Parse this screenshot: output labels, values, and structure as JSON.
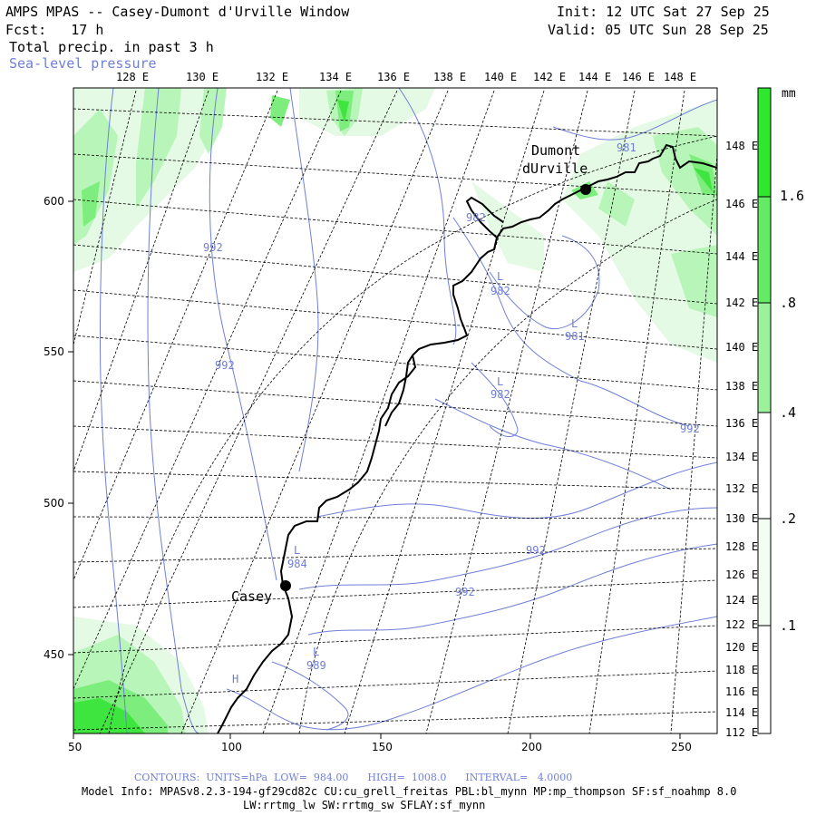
{
  "header": {
    "title": "AMPS MPAS -- Casey-Dumont d'Urville Window",
    "fcst": "Fcst:   17 h",
    "field1": "Total precip. in past 3 h",
    "field2": "Sea-level pressure",
    "init": "Init: 12 UTC Sat 27 Sep 25",
    "valid": "Valid: 05 UTC Sun 28 Sep 25"
  },
  "top_lon_labels": [
    "128 E",
    "130 E",
    "132 E",
    "134 E",
    "136 E",
    "138 E",
    "140 E",
    "142 E",
    "144 E",
    "146 E",
    "148 E"
  ],
  "right_lon_labels": [
    "148 E",
    "146 E",
    "144 E",
    "142 E",
    "140 E",
    "138 E",
    "136 E",
    "134 E",
    "132 E",
    "130 E",
    "128 E",
    "126 E",
    "124 E",
    "122 E",
    "120 E",
    "118 E",
    "116 E",
    "114 E",
    "112 E"
  ],
  "x_axis_labels": [
    "50",
    "100",
    "150",
    "200",
    "250"
  ],
  "y_axis_labels": [
    "600",
    "550",
    "500",
    "450"
  ],
  "colorbar": {
    "unit": "mm",
    "labels": [
      "1.6",
      ".8",
      ".4",
      ".2",
      ".1"
    ],
    "colors": [
      "#2ee82e",
      "#63ec63",
      "#9bf29b",
      "#ccf8cc",
      "#ecfcec",
      "#ffffff"
    ]
  },
  "stations": [
    {
      "name_line1": "Dumont",
      "name_line2": "dUrville"
    },
    {
      "name_line1": "Casey",
      "name_line2": ""
    }
  ],
  "contour_labels": [
    "981",
    "982",
    "L",
    "982",
    "L",
    "981",
    "L",
    "982",
    "992",
    "992",
    "992",
    "992",
    "992",
    "L",
    "984",
    "L",
    "989",
    "H"
  ],
  "footer": {
    "contours": "CONTOURS:  UNITS=hPa  LOW=  984.00      HIGH=  1008.0      INTERVAL=   4.0000",
    "model_info": "Model Info: MPASv8.2.3-194-gf29cd82c CU:cu_grell_freitas PBL:bl_mynn MP:mp_thompson SF:sf_noahmp 8.0",
    "model_info2": "LW:rrtmg_lw SW:rrtmg_sw SFLAY:sf_mynn"
  }
}
